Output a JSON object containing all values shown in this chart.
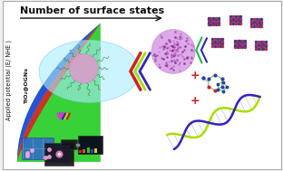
{
  "title": "Number of surface states",
  "ylabel": "Applied potential (E/ NHE )",
  "label_tio2": "TiO₂@OGNs",
  "bg_color": "#f8f8f8",
  "border_color": "#aaaaaa",
  "wedge_green": "#22cc22",
  "wedge_blue": "#2244ee",
  "wedge_red": "#dd2222",
  "dish_color": "#aaeeff",
  "sphere_color": "#cc88cc",
  "big_sphere_color": "#cc88dd",
  "dna_color1": "#aadd00",
  "dna_color2": "#3322bb",
  "crystal_color1": "#cc2233",
  "crystal_color2": "#2244aa",
  "molecule_green": "#88aa44",
  "molecule_blue": "#2244aa",
  "molecule_red": "#cc2233",
  "plus_color": "#cc2222",
  "chevron_red": "#cc2222",
  "chevron_green": "#aadd00",
  "chevron_blue": "#3322bb",
  "chevron_pink": "#cc44cc"
}
